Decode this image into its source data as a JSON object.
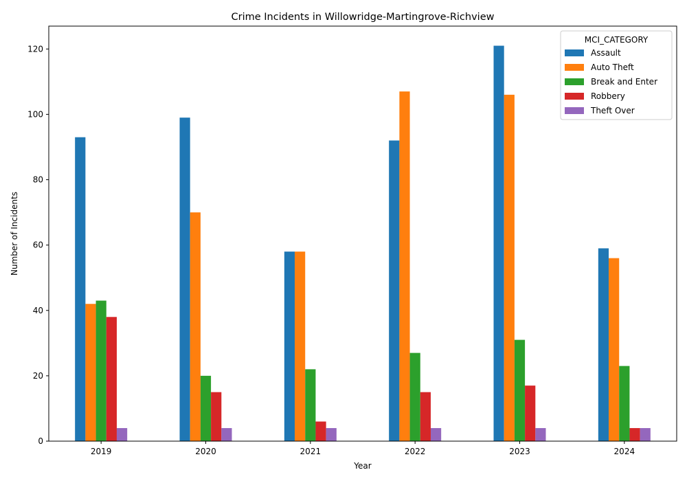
{
  "chart_data": {
    "type": "bar",
    "title": "Crime Incidents in Willowridge-Martingrove-Richview",
    "xlabel": "Year",
    "ylabel": "Number of Incidents",
    "categories": [
      "2019",
      "2020",
      "2021",
      "2022",
      "2023",
      "2024"
    ],
    "ylim": [
      0,
      127
    ],
    "yticks": [
      0,
      20,
      40,
      60,
      80,
      100,
      120
    ],
    "grid": false,
    "legend_title": "MCI_CATEGORY",
    "legend_position": "top-right",
    "series": [
      {
        "name": "Assault",
        "color": "#1f77b4",
        "values": [
          93,
          99,
          58,
          92,
          121,
          59
        ]
      },
      {
        "name": "Auto Theft",
        "color": "#ff7f0e",
        "values": [
          42,
          70,
          58,
          107,
          106,
          56
        ]
      },
      {
        "name": "Break and Enter",
        "color": "#2ca02c",
        "values": [
          43,
          20,
          22,
          27,
          31,
          23
        ]
      },
      {
        "name": "Robbery",
        "color": "#d62728",
        "values": [
          38,
          15,
          6,
          15,
          17,
          4
        ]
      },
      {
        "name": "Theft Over",
        "color": "#9467bd",
        "values": [
          4,
          4,
          4,
          4,
          4,
          4
        ]
      }
    ]
  }
}
